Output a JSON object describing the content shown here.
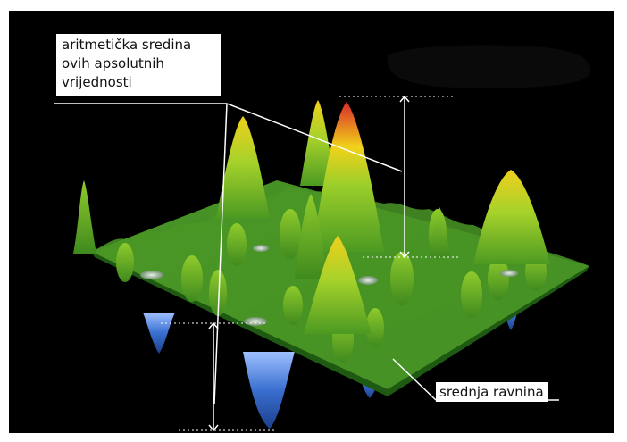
{
  "annotations": {
    "mean_label": [
      "aritmetička sredina",
      "ovih apsolutnih",
      "vrijednosti"
    ],
    "plane_label": "srednja ravnina"
  },
  "colors": {
    "background": "#000000",
    "surface_low": "#2f7a1f",
    "surface_mid": "#7cc42a",
    "peak_yellow": "#f2d21a",
    "peak_red": "#d8282a",
    "valley_blue": "#3a6fd0",
    "guide_lines": "#ffffff"
  }
}
